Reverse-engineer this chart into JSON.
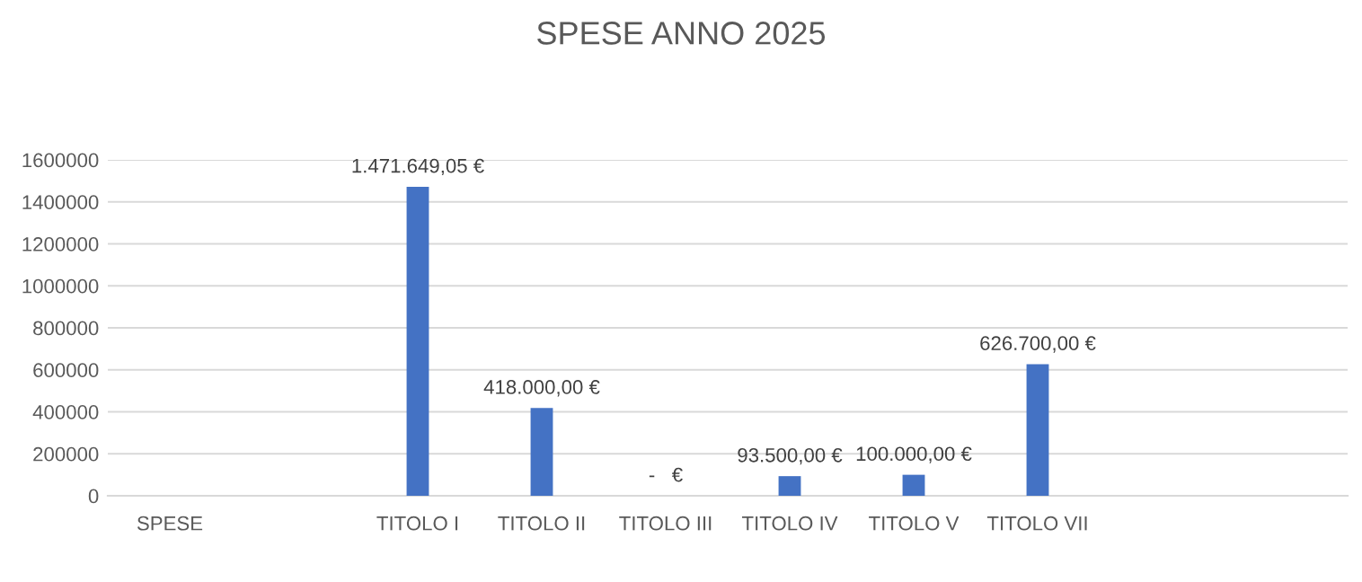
{
  "chart_data": {
    "type": "bar",
    "title": "SPESE ANNO 2025",
    "categories": [
      "SPESE",
      null,
      "TITOLO I",
      "TITOLO II",
      "TITOLO III",
      "TITOLO IV",
      "TITOLO V",
      "TITOLO VII",
      null,
      null
    ],
    "values": [
      null,
      null,
      1471649.05,
      418000,
      0,
      93500,
      100000,
      626700,
      null,
      null
    ],
    "value_labels": [
      null,
      null,
      "1.471.649,05 €",
      "418.000,00 €",
      "-   €",
      "93.500,00 €",
      "100.000,00 €",
      "626.700,00 €",
      null,
      null
    ],
    "color": "#4472c4",
    "ylim": [
      0,
      1600000
    ],
    "yticks": [
      0,
      200000,
      400000,
      600000,
      800000,
      1000000,
      1200000,
      1400000,
      1600000
    ],
    "grid": "y",
    "legend": false
  }
}
